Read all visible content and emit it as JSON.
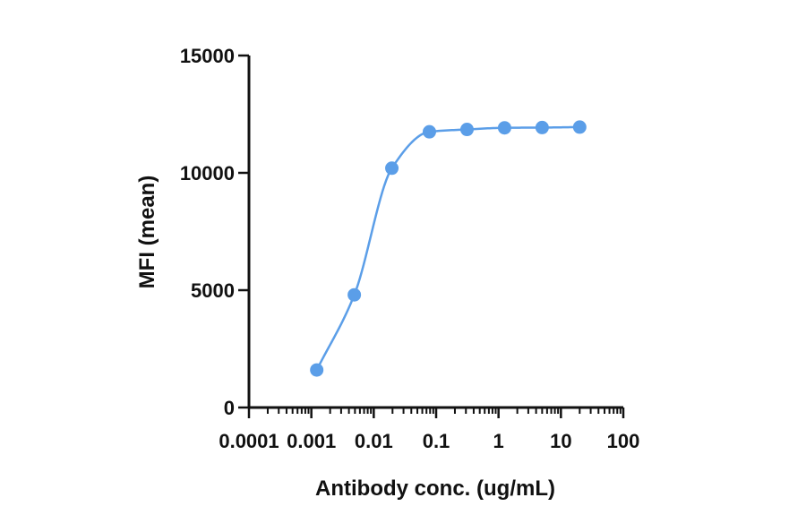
{
  "chart_data": {
    "type": "scatter",
    "title": "",
    "xlabel": "Antibody conc. (ug/mL)",
    "ylabel": "MFI (mean)",
    "x_scale": "log",
    "xlim": [
      0.0001,
      100
    ],
    "ylim": [
      0,
      15000
    ],
    "x_ticks": [
      "0.0001",
      "0.001",
      "0.01",
      "0.1",
      "1",
      "10",
      "100"
    ],
    "y_ticks": [
      "0",
      "5000",
      "10000",
      "15000"
    ],
    "grid": false,
    "color": "#5b9ee8",
    "series": [
      {
        "x": [
          0.00122,
          0.00488,
          0.0195,
          0.078,
          0.3125,
          1.25,
          5,
          20
        ],
        "y": [
          1600,
          4800,
          10200,
          11750,
          11850,
          11920,
          11930,
          11950
        ],
        "fit_curve": true
      }
    ]
  }
}
